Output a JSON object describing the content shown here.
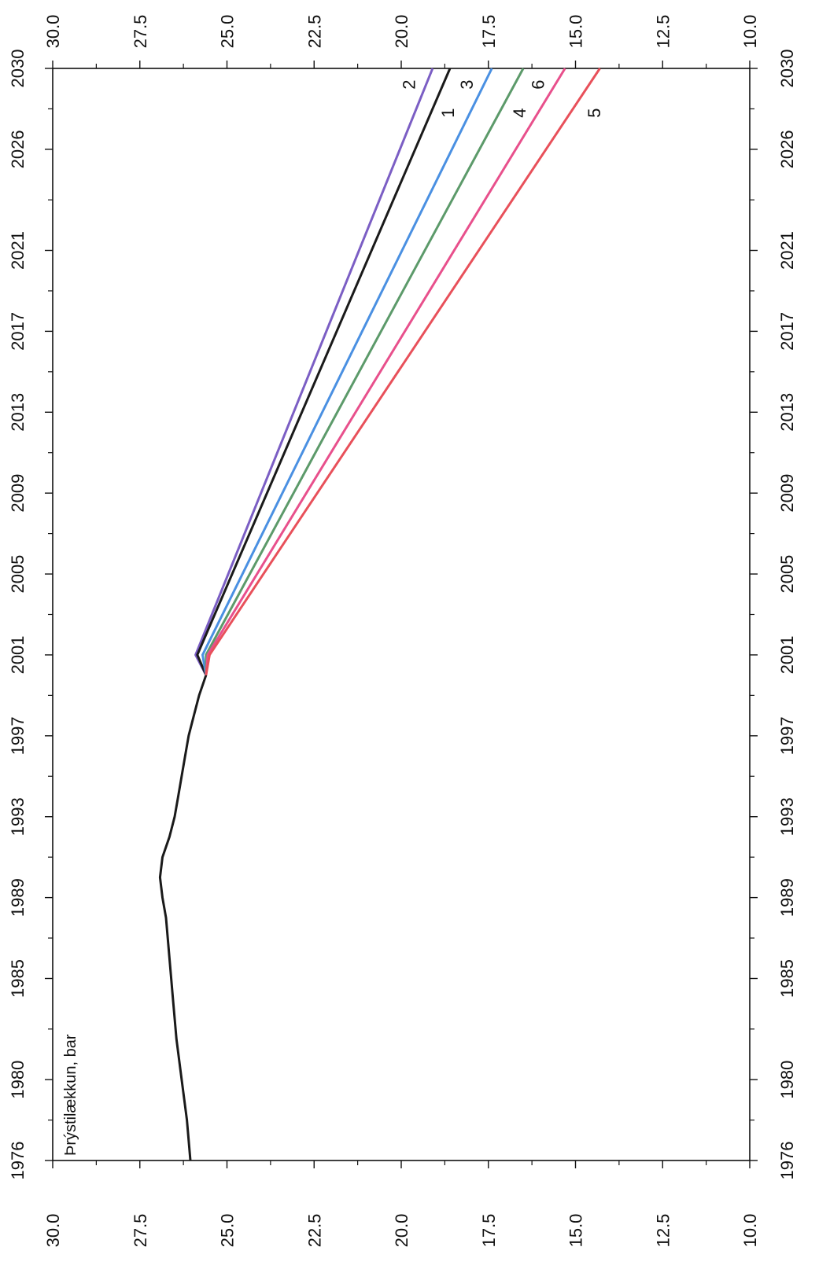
{
  "chart_data": {
    "type": "line",
    "annotation": "Þrýstilækkun, bar",
    "x_ticks": [
      "1976",
      "1980",
      "1985",
      "1989",
      "1993",
      "1997",
      "2001",
      "2005",
      "2009",
      "2013",
      "2017",
      "2021",
      "2026",
      "2030"
    ],
    "y_ticks": [
      "30.0",
      "27.5",
      "25.0",
      "22.5",
      "20.0",
      "17.5",
      "15.0",
      "12.5",
      "10.0"
    ],
    "xlim": [
      1976,
      2030
    ],
    "ylim": [
      30.0,
      10.0
    ],
    "y_inverted": true,
    "grid": false,
    "historical": {
      "name": "",
      "color": "#1a1a1a",
      "x": [
        1976,
        1978,
        1980,
        1982,
        1984,
        1986,
        1988,
        1989,
        1990,
        1991,
        1992,
        1993,
        1994,
        1995,
        1996,
        1997,
        1998,
        1999,
        2000
      ],
      "y": [
        26.05,
        26.15,
        26.3,
        26.45,
        26.55,
        26.65,
        26.75,
        26.85,
        26.92,
        26.85,
        26.65,
        26.5,
        26.4,
        26.3,
        26.2,
        26.1,
        25.95,
        25.8,
        25.6
      ]
    },
    "series": [
      {
        "name": "2",
        "color": "#7b5ec4",
        "x": [
          2000,
          2001,
          2030
        ],
        "y": [
          25.6,
          25.9,
          19.1
        ]
      },
      {
        "name": "1",
        "color": "#1a1a1a",
        "x": [
          2000,
          2001,
          2030
        ],
        "y": [
          25.6,
          25.85,
          18.6
        ]
      },
      {
        "name": "3",
        "color": "#4a90e2",
        "x": [
          2000,
          2001,
          2030
        ],
        "y": [
          25.6,
          25.7,
          17.4
        ]
      },
      {
        "name": "4",
        "color": "#5c9a6a",
        "x": [
          2000,
          2001,
          2030
        ],
        "y": [
          25.6,
          25.6,
          16.5
        ]
      },
      {
        "name": "6",
        "color": "#e8508c",
        "x": [
          2000,
          2001,
          2030
        ],
        "y": [
          25.6,
          25.55,
          15.3
        ]
      },
      {
        "name": "5",
        "color": "#e8505a",
        "x": [
          2000,
          2001,
          2030
        ],
        "y": [
          25.6,
          25.5,
          14.3
        ]
      }
    ]
  }
}
